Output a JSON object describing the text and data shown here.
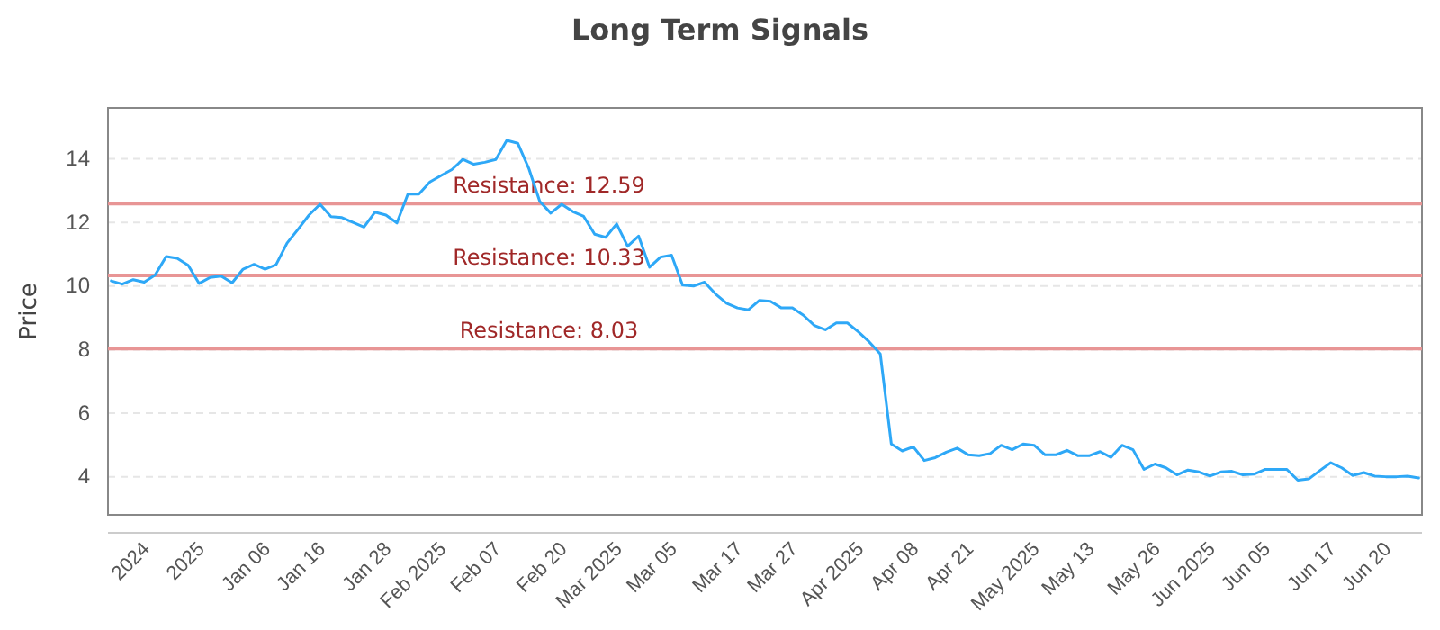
{
  "chart_data": {
    "type": "line",
    "title": "Long Term Signals",
    "ylabel": "Price",
    "categories": [
      null,
      null,
      null,
      "2024",
      null,
      null,
      null,
      null,
      "2025",
      null,
      null,
      null,
      null,
      null,
      "Jan 06",
      null,
      null,
      null,
      null,
      "Jan 16",
      null,
      null,
      null,
      null,
      null,
      "Jan 28",
      null,
      null,
      null,
      null,
      "Feb 2025",
      null,
      null,
      null,
      null,
      "Feb 07",
      null,
      null,
      null,
      null,
      null,
      "Feb 20",
      null,
      null,
      null,
      null,
      "Mar 2025",
      null,
      null,
      null,
      null,
      "Mar 05",
      null,
      null,
      null,
      null,
      null,
      "Mar 17",
      null,
      null,
      null,
      null,
      "Mar 27",
      null,
      null,
      null,
      null,
      null,
      "Apr 2025",
      null,
      null,
      null,
      null,
      "Apr 08",
      null,
      null,
      null,
      null,
      "Apr 21",
      null,
      null,
      null,
      null,
      null,
      "May 2025",
      null,
      null,
      null,
      null,
      "May 13",
      null,
      null,
      null,
      null,
      null,
      "May 26",
      null,
      null,
      null,
      null,
      "Jun 2025",
      null,
      null,
      null,
      null,
      "Jun 05",
      null,
      null,
      null,
      null,
      null,
      "Jun 17",
      null,
      null,
      null,
      null,
      "Jun 20",
      null,
      null,
      null
    ],
    "series": [
      {
        "color": "#2ea8f7",
        "values": [
          10.16,
          10.06,
          10.2,
          10.12,
          10.35,
          10.93,
          10.87,
          10.65,
          10.08,
          10.27,
          10.31,
          10.1,
          10.53,
          10.68,
          10.53,
          10.67,
          11.35,
          11.78,
          12.23,
          12.57,
          12.18,
          12.15,
          12.0,
          11.85,
          12.32,
          12.23,
          11.98,
          12.89,
          12.89,
          13.27,
          13.47,
          13.66,
          13.98,
          13.83,
          13.89,
          13.98,
          14.58,
          14.49,
          13.7,
          12.66,
          12.29,
          12.57,
          12.34,
          12.19,
          11.63,
          11.53,
          11.95,
          11.25,
          11.57,
          10.59,
          10.91,
          10.97,
          10.03,
          10.0,
          10.12,
          9.75,
          9.46,
          9.31,
          9.25,
          9.55,
          9.52,
          9.31,
          9.31,
          9.08,
          8.76,
          8.62,
          8.84,
          8.84,
          8.56,
          8.24,
          7.86,
          5.03,
          4.81,
          4.94,
          4.51,
          4.6,
          4.77,
          4.9,
          4.69,
          4.66,
          4.73,
          4.99,
          4.85,
          5.03,
          4.99,
          4.69,
          4.69,
          4.83,
          4.66,
          4.66,
          4.79,
          4.61,
          4.99,
          4.85,
          4.23,
          4.4,
          4.28,
          4.06,
          4.21,
          4.15,
          4.02,
          4.15,
          4.17,
          4.06,
          4.08,
          4.23,
          4.23,
          4.23,
          3.89,
          3.93,
          4.19,
          4.44,
          4.28,
          4.04,
          4.13,
          4.02,
          4.0,
          4.0,
          4.02,
          3.96
        ]
      }
    ],
    "ylim": [
      2.8,
      15.6
    ],
    "yticks": [
      4,
      6,
      8,
      10,
      12,
      14
    ],
    "grid": "y",
    "marker": "none",
    "line_style": "solid",
    "ref_lines": [
      {
        "axis": "y",
        "value": 12.59,
        "label": "Resistance: 12.59",
        "color": "#e89595"
      },
      {
        "axis": "y",
        "value": 10.33,
        "label": "Resistance: 10.33",
        "color": "#e89595"
      },
      {
        "axis": "y",
        "value": 8.03,
        "label": "Resistance: 8.03",
        "color": "#e89595"
      }
    ]
  }
}
